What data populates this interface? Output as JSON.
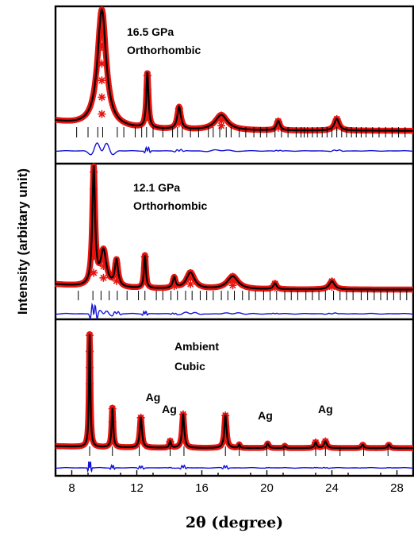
{
  "chart_data": {
    "type": "line",
    "title": "",
    "xlabel": "2θ (degree)",
    "ylabel": "Intensity (arbitary unit)",
    "xlim": [
      7,
      29
    ],
    "xticks": [
      8,
      12,
      16,
      20,
      24,
      28
    ],
    "colors": {
      "observed": "#e8130f",
      "calculated": "#000000",
      "difference": "#1414d8",
      "reflections": "#000000"
    },
    "panels": [
      {
        "pressure_label": "16.5 GPa",
        "phase_label": "Orthorhombic",
        "background": 0.09,
        "peaks": [
          {
            "x": 9.85,
            "h": 1.0,
            "w": 0.32
          },
          {
            "x": 12.65,
            "h": 0.47,
            "w": 0.08
          },
          {
            "x": 14.6,
            "h": 0.19,
            "w": 0.13
          },
          {
            "x": 17.2,
            "h": 0.13,
            "w": 0.45
          },
          {
            "x": 20.7,
            "h": 0.08,
            "w": 0.13
          },
          {
            "x": 24.3,
            "h": 0.1,
            "w": 0.18
          }
        ],
        "reflections": [
          8.3,
          9.0,
          9.6,
          9.9,
          10.8,
          11.2,
          11.9,
          12.3,
          12.6,
          13.0,
          13.6,
          14.2,
          14.5,
          14.8,
          15.3,
          15.8,
          16.4,
          16.7,
          17.1,
          17.5,
          17.8,
          18.3,
          18.7,
          19.2,
          19.6,
          20.0,
          20.5,
          20.9,
          21.3,
          21.8,
          22.1,
          22.3,
          22.5,
          22.8,
          23.1,
          23.4,
          23.7,
          24.0,
          24.3,
          24.6,
          24.9,
          25.2,
          25.5,
          25.8,
          26.1,
          26.5,
          26.9,
          27.3,
          27.7,
          28.1,
          28.5
        ]
      },
      {
        "pressure_label": "12.1 GPa",
        "phase_label": "Orthorhombic",
        "background": 0.05,
        "peaks": [
          {
            "x": 9.35,
            "h": 1.0,
            "w": 0.1
          },
          {
            "x": 9.95,
            "h": 0.3,
            "w": 0.22
          },
          {
            "x": 10.75,
            "h": 0.22,
            "w": 0.12
          },
          {
            "x": 12.5,
            "h": 0.28,
            "w": 0.07
          },
          {
            "x": 14.3,
            "h": 0.09,
            "w": 0.1
          },
          {
            "x": 15.3,
            "h": 0.14,
            "w": 0.3
          },
          {
            "x": 17.9,
            "h": 0.11,
            "w": 0.4
          },
          {
            "x": 20.5,
            "h": 0.05,
            "w": 0.12
          },
          {
            "x": 24.0,
            "h": 0.07,
            "w": 0.2
          }
        ],
        "reflections": [
          8.4,
          9.3,
          9.8,
          10.3,
          10.8,
          11.4,
          12.1,
          12.5,
          13.2,
          13.6,
          14.1,
          14.5,
          15.0,
          15.4,
          15.9,
          16.3,
          16.7,
          17.2,
          17.6,
          18.0,
          18.5,
          18.9,
          19.3,
          19.8,
          20.2,
          20.6,
          21.1,
          21.5,
          21.9,
          22.4,
          22.8,
          23.2,
          23.6,
          24.1,
          24.5,
          24.9,
          25.3,
          25.8,
          26.2,
          26.6,
          27.0,
          27.4,
          27.8,
          28.2,
          28.6
        ]
      },
      {
        "pressure_label": "Ambient",
        "phase_label": "Cubic",
        "background": 0.02,
        "peaks": [
          {
            "x": 9.1,
            "h": 1.0,
            "w": 0.05
          },
          {
            "x": 10.5,
            "h": 0.35,
            "w": 0.06
          },
          {
            "x": 12.25,
            "h": 0.27,
            "w": 0.08
          },
          {
            "x": 14.05,
            "h": 0.06,
            "w": 0.06
          },
          {
            "x": 14.85,
            "h": 0.3,
            "w": 0.08
          },
          {
            "x": 17.45,
            "h": 0.29,
            "w": 0.08
          },
          {
            "x": 18.3,
            "h": 0.03,
            "w": 0.06
          },
          {
            "x": 20.05,
            "h": 0.04,
            "w": 0.08
          },
          {
            "x": 21.1,
            "h": 0.02,
            "w": 0.06
          },
          {
            "x": 23.0,
            "h": 0.05,
            "w": 0.08
          },
          {
            "x": 23.6,
            "h": 0.06,
            "w": 0.1
          },
          {
            "x": 25.9,
            "h": 0.03,
            "w": 0.08
          },
          {
            "x": 27.5,
            "h": 0.03,
            "w": 0.08
          }
        ],
        "reflections": [
          9.1,
          10.5,
          12.15,
          14.05,
          14.9,
          17.45,
          18.3,
          20.0,
          21.05,
          23.0,
          23.6,
          24.5,
          25.95,
          27.45
        ],
        "peak_annotations": [
          {
            "text": "Ag",
            "x": 13.0
          },
          {
            "text": "Ag",
            "x": 14.0
          },
          {
            "text": "Ag",
            "x": 19.9
          },
          {
            "text": "Ag",
            "x": 23.6
          }
        ]
      }
    ]
  }
}
